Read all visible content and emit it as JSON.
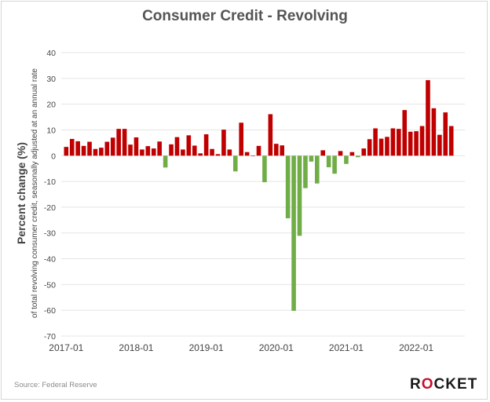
{
  "title": "Consumer Credit - Revolving",
  "source": "Source: Federal Reserve",
  "brand": {
    "text": "ROCKET",
    "accent_index": 1
  },
  "colors": {
    "positive": "#c00000",
    "negative": "#70ad47",
    "grid": "#e4e4e4",
    "axis_text": "#444444"
  },
  "chart_data": {
    "type": "bar",
    "title": "Consumer Credit - Revolving",
    "ylabel": "Percent change (%)",
    "ylabel_sub": "of total revolving consumer credit, seasonally adjusted at an annual rate",
    "xlabel": "",
    "ylim": [
      -70,
      40
    ],
    "yticks": [
      40,
      30,
      20,
      10,
      0,
      -10,
      -20,
      -30,
      -40,
      -50,
      -60,
      -70
    ],
    "xtick_labels": [
      "2017-01",
      "2018-01",
      "2019-01",
      "2020-01",
      "2021-01",
      "2022-01"
    ],
    "xtick_positions": [
      0,
      12,
      24,
      36,
      48,
      60
    ],
    "grid": true,
    "start": "2017-01",
    "frequency": "monthly",
    "values": [
      3.4,
      6.5,
      5.6,
      3.8,
      5.4,
      2.6,
      3.1,
      5.4,
      7.0,
      10.4,
      10.4,
      4.3,
      7.1,
      2.4,
      3.7,
      2.8,
      5.5,
      -4.6,
      4.4,
      7.2,
      2.4,
      7.9,
      3.9,
      0.9,
      8.3,
      2.6,
      0.6,
      10.1,
      2.4,
      -6.1,
      12.8,
      1.4,
      0.0,
      3.8,
      -10.3,
      16.1,
      4.6,
      4.0,
      -24.3,
      -60.2,
      -31.1,
      -12.6,
      -2.3,
      -10.8,
      2.1,
      -4.5,
      -7.0,
      1.8,
      -3.2,
      1.4,
      -0.6,
      2.8,
      6.4,
      10.6,
      6.6,
      7.3,
      10.6,
      10.4,
      17.7,
      9.3,
      9.5,
      11.5,
      29.3,
      18.4,
      8.1,
      16.8,
      11.5
    ]
  }
}
